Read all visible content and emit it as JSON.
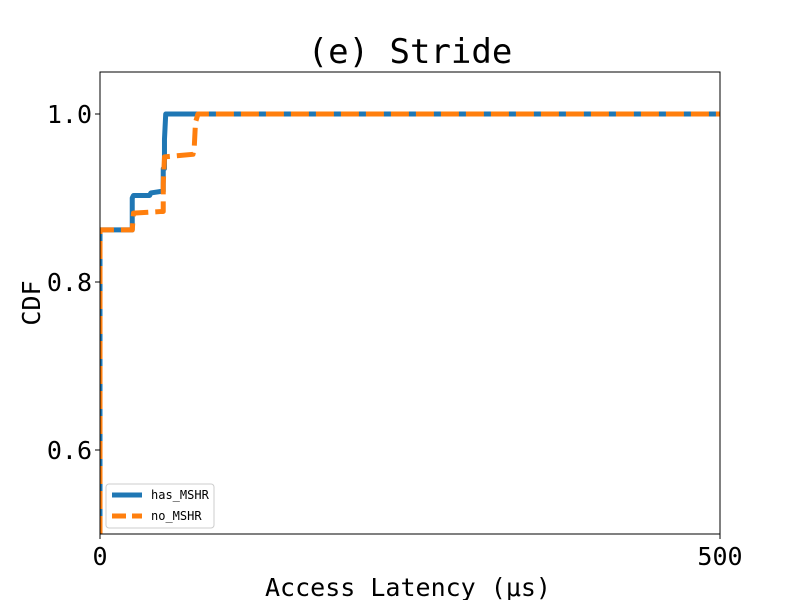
{
  "chart_data": {
    "type": "line",
    "title": "(e) Stride",
    "xlabel": "Access Latency (μs)",
    "ylabel": "CDF",
    "xlim": [
      0,
      500
    ],
    "ylim": [
      0.5,
      1.05
    ],
    "xticks": [
      0,
      500
    ],
    "yticks": [
      0.6,
      0.8,
      1.0
    ],
    "xtick_labels": [
      "0",
      "500"
    ],
    "ytick_labels": [
      "0.6",
      "0.8",
      "1.0"
    ],
    "grid": false,
    "legend": {
      "placement": "lower-left"
    },
    "colors": {
      "has_MSHR": "#1f77b4",
      "no_MSHR": "#ff7f0e"
    },
    "series": [
      {
        "name": "has_MSHR",
        "style": "solid",
        "x": [
          0,
          0,
          1,
          26,
          26,
          27,
          40,
          41,
          50,
          51,
          51,
          52,
          52,
          53,
          500
        ],
        "y": [
          0.5,
          0.862,
          0.862,
          0.862,
          0.9,
          0.903,
          0.903,
          0.906,
          0.908,
          0.908,
          0.935,
          0.935,
          0.97,
          1.0,
          1.0
        ]
      },
      {
        "name": "no_MSHR",
        "style": "dashed",
        "x": [
          0,
          0,
          1,
          26,
          27,
          50,
          51,
          51,
          52,
          75,
          76,
          77,
          79,
          500
        ],
        "y": [
          0.5,
          0.862,
          0.862,
          0.862,
          0.882,
          0.884,
          0.884,
          0.917,
          0.949,
          0.952,
          0.96,
          0.99,
          1.0,
          1.0
        ]
      }
    ]
  }
}
